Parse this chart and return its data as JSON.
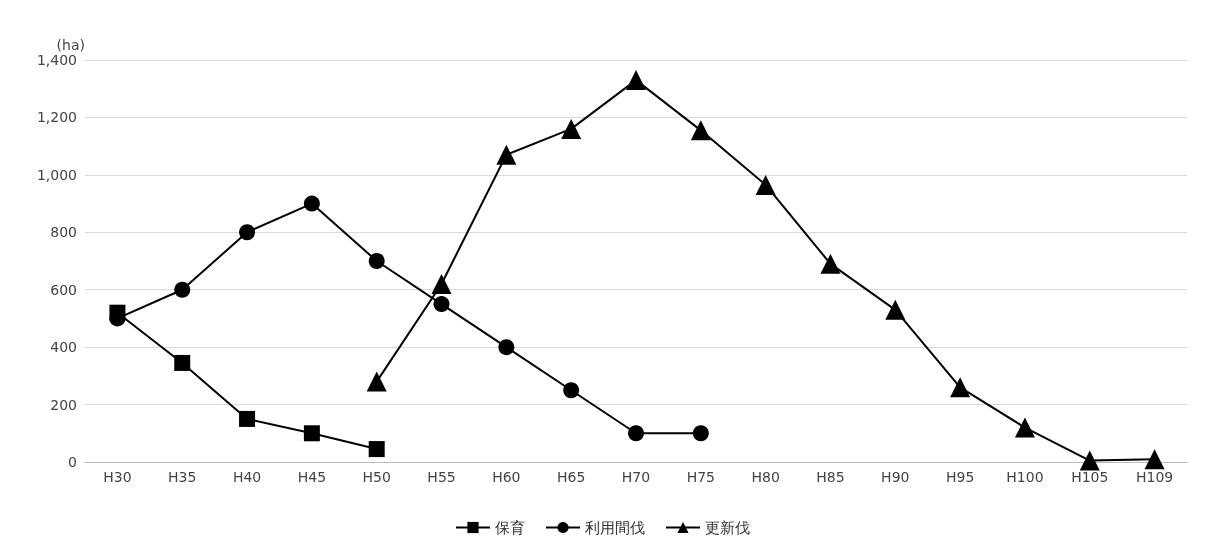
{
  "chart_data": {
    "type": "line",
    "ylabel": "(ha)",
    "categories": [
      "H30",
      "H35",
      "H40",
      "H45",
      "H50",
      "H55",
      "H60",
      "H65",
      "H70",
      "H75",
      "H80",
      "H85",
      "H90",
      "H95",
      "H100",
      "H105",
      "H109"
    ],
    "series": [
      {
        "name": "保育",
        "color": "#000000",
        "marker": "square",
        "values": [
          520,
          345,
          150,
          100,
          45,
          null,
          null,
          null,
          null,
          null,
          null,
          null,
          null,
          null,
          null,
          null,
          null
        ]
      },
      {
        "name": "利用間伐",
        "color": "#000000",
        "marker": "circle",
        "values": [
          500,
          600,
          800,
          900,
          700,
          550,
          400,
          250,
          100,
          100,
          null,
          null,
          null,
          null,
          null,
          null,
          null
        ]
      },
      {
        "name": "更新伐",
        "color": "#000000",
        "marker": "triangle",
        "values": [
          null,
          null,
          null,
          null,
          280,
          620,
          1070,
          1160,
          1330,
          1155,
          965,
          690,
          530,
          260,
          120,
          5,
          10
        ]
      }
    ],
    "ylim": [
      0,
      1400
    ],
    "yticks": [
      0,
      200,
      400,
      600,
      800,
      {
        "value": 1000,
        "label": "1,000"
      },
      {
        "value": 1200,
        "label": "1,200"
      },
      {
        "value": 1400,
        "label": "1,400"
      }
    ],
    "grid": "y",
    "legend": "bottom",
    "line_style": "solid"
  }
}
